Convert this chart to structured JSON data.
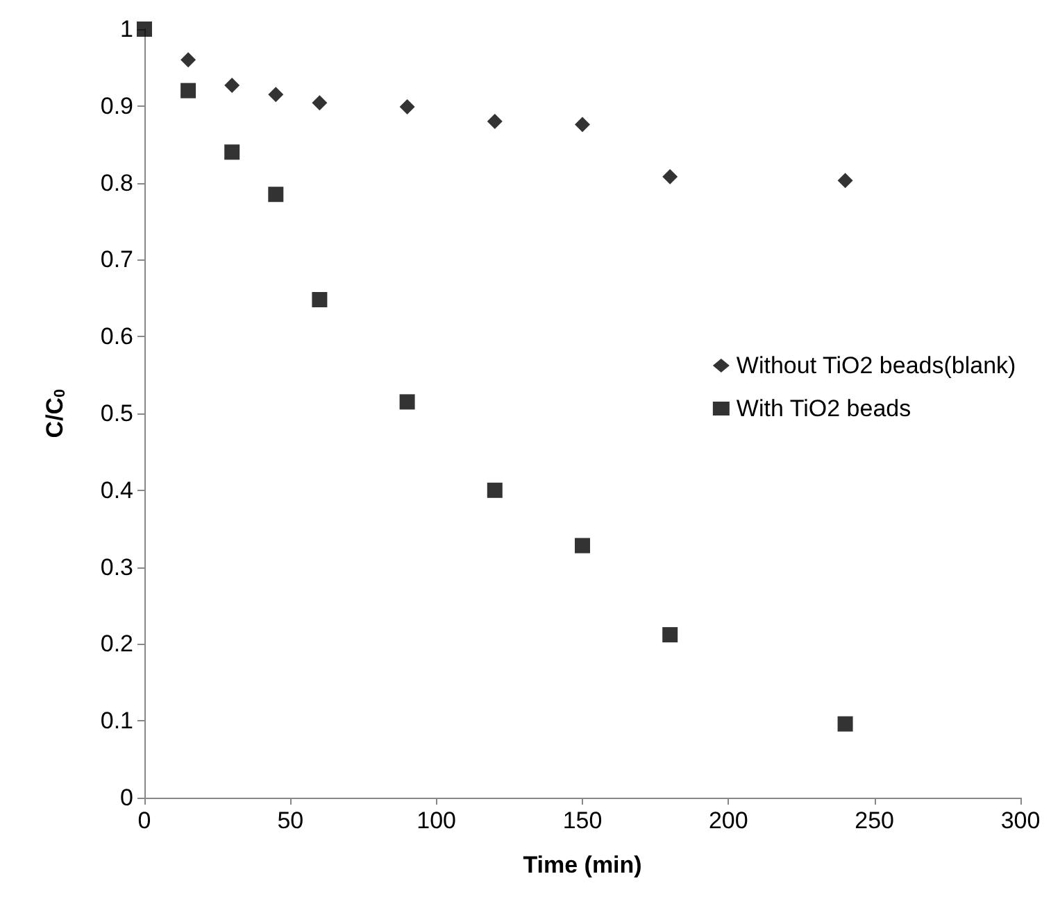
{
  "chart_data": {
    "type": "scatter",
    "xlabel": "Time (min)",
    "ylabel": "C/C$_{0}$",
    "x": [
      0,
      15,
      30,
      45,
      60,
      90,
      120,
      150,
      180,
      240
    ],
    "series": [
      {
        "name": "Without TiO2 beads(blank)",
        "color": "#000000",
        "marker": "diamond",
        "values": [
          null,
          0.96,
          0.927,
          0.915,
          0.904,
          0.899,
          0.88,
          0.876,
          0.808,
          0.803
        ]
      },
      {
        "name": "With TiO2 beads",
        "color": "#000000",
        "marker": "square",
        "values": [
          1,
          0.92,
          0.84,
          0.785,
          0.648,
          0.515,
          0.4,
          0.328,
          0.212,
          0.096
        ]
      }
    ],
    "xlim": [
      0,
      300
    ],
    "xticks": [
      0,
      50,
      100,
      150,
      200,
      250,
      300
    ],
    "ylim": [
      0,
      1
    ],
    "yticks": [
      0,
      0.1,
      0.2,
      0.3,
      0.4,
      0.5,
      0.6,
      0.7,
      0.8,
      0.9,
      1
    ],
    "grid": false,
    "legend": "right"
  }
}
